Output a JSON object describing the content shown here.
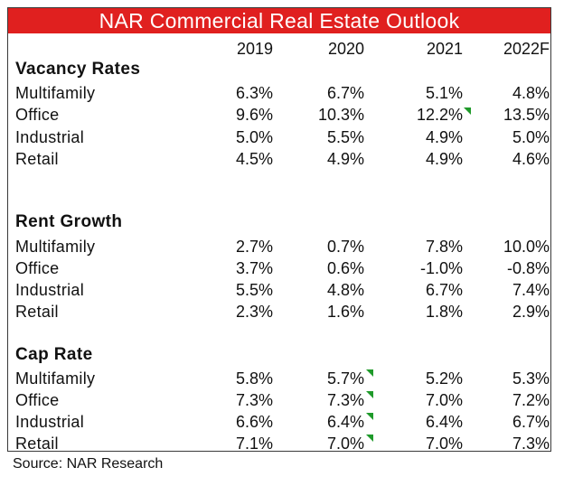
{
  "title": "NAR Commercial Real Estate Outlook",
  "columns": [
    "2019",
    "2020",
    "2021",
    "2022F"
  ],
  "sections": [
    {
      "name": "Vacancy Rates",
      "rows": [
        {
          "label": "Multifamily",
          "values": [
            "6.3%",
            "6.7%",
            "5.1%",
            "4.8%"
          ]
        },
        {
          "label": "Office",
          "values": [
            "9.6%",
            "10.3%",
            "12.2%",
            "13.5%"
          ]
        },
        {
          "label": "Industrial",
          "values": [
            "5.0%",
            "5.5%",
            "4.9%",
            "5.0%"
          ]
        },
        {
          "label": "Retail",
          "values": [
            "4.5%",
            "4.9%",
            "4.9%",
            "4.6%"
          ]
        }
      ]
    },
    {
      "name": "Rent Growth",
      "rows": [
        {
          "label": "Multifamily",
          "values": [
            "2.7%",
            "0.7%",
            "7.8%",
            "10.0%"
          ]
        },
        {
          "label": "Office",
          "values": [
            "3.7%",
            "0.6%",
            "-1.0%",
            "-0.8%"
          ]
        },
        {
          "label": "Industrial",
          "values": [
            "5.5%",
            "4.8%",
            "6.7%",
            "7.4%"
          ]
        },
        {
          "label": "Retail",
          "values": [
            "2.3%",
            "1.6%",
            "1.8%",
            "2.9%"
          ]
        }
      ]
    },
    {
      "name": "Cap Rate",
      "rows": [
        {
          "label": "Multifamily",
          "values": [
            "5.8%",
            "5.7%",
            "5.2%",
            "5.3%"
          ]
        },
        {
          "label": "Office",
          "values": [
            "7.3%",
            "7.3%",
            "7.0%",
            "7.2%"
          ]
        },
        {
          "label": "Industrial",
          "values": [
            "6.6%",
            "6.4%",
            "6.4%",
            "6.7%"
          ]
        },
        {
          "label": "Retail",
          "values": [
            "7.1%",
            "7.0%",
            "7.0%",
            "7.3%"
          ]
        }
      ]
    }
  ],
  "source": "Source: NAR Research",
  "colors": {
    "title_bar": "#e0201f",
    "flag": "#1f9a2a"
  }
}
